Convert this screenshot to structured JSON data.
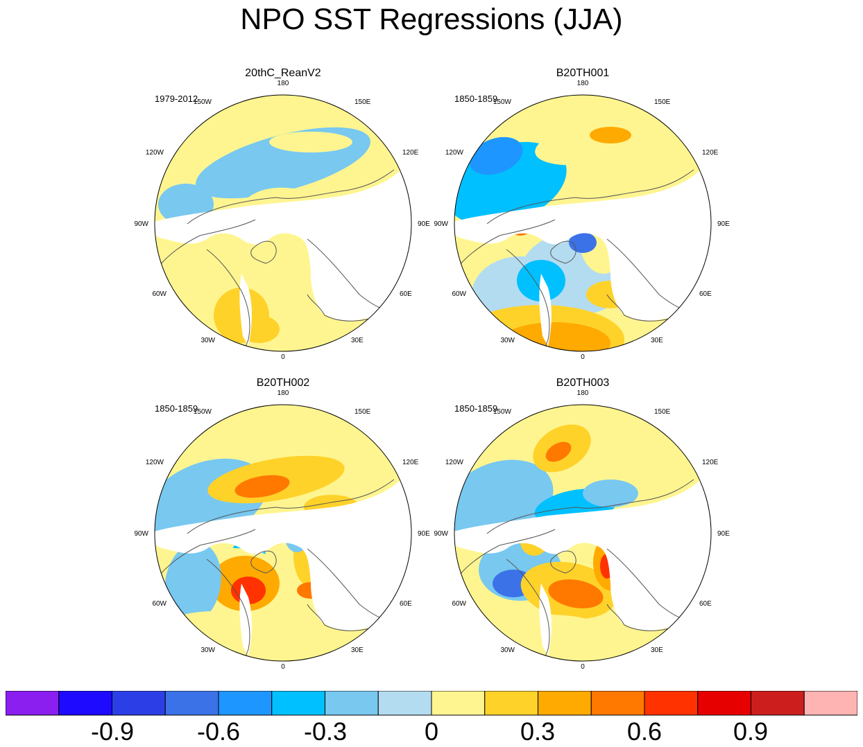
{
  "title": "NPO SST Regressions (JJA)",
  "panels": [
    {
      "title": "20thC_ReanV2",
      "period": "1979-2012"
    },
    {
      "title": "B20TH001",
      "period": "1850-1859"
    },
    {
      "title": "B20TH002",
      "period": "1850-1859"
    },
    {
      "title": "B20TH003",
      "period": "1850-1859"
    }
  ],
  "longitude_labels": [
    "180",
    "150E",
    "120E",
    "90E",
    "60E",
    "30E",
    "0",
    "30W",
    "60W",
    "90W",
    "120W",
    "150W"
  ],
  "colorbar": {
    "labels": [
      "-0.9",
      "-0.6",
      "-0.3",
      "0",
      "0.3",
      "0.6",
      "0.9"
    ],
    "colors": [
      "#8a1ff0",
      "#1e0aff",
      "#2c3fe6",
      "#3b72e8",
      "#1e96ff",
      "#00c0ff",
      "#78c8f0",
      "#b4dcf0",
      "#fff590",
      "#ffd22a",
      "#ffaa00",
      "#ff7800",
      "#ff3200",
      "#e60000",
      "#cd1e1e",
      "#ffb4b4"
    ]
  }
}
